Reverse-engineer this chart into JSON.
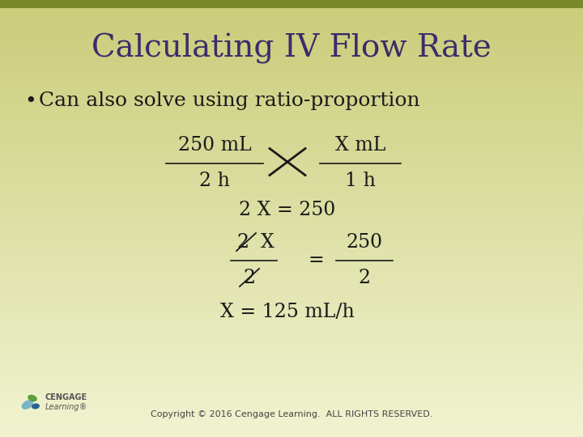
{
  "title": "Calculating IV Flow Rate",
  "title_color": "#3d2b6b",
  "title_fontsize": 28,
  "bullet_text": "Can also solve using ratio-proportion",
  "bullet_fontsize": 18,
  "text_color": "#1a1a1a",
  "bg_top": "#c9cc78",
  "bg_bottom": "#f0f3d0",
  "copyright": "Copyright © 2016 Cengage Learning.  ALL RIGHTS RESERVED.",
  "copyright_fontsize": 8,
  "math_color": "#1a1a1a",
  "math_fontsize": 17,
  "top_bar_color": "#7a8a2a",
  "top_bar_height": 0.018
}
